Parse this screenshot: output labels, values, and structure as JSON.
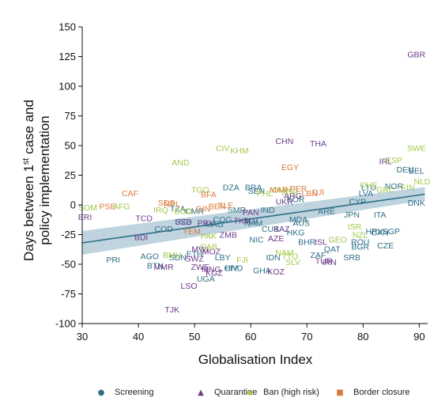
{
  "chart_data": {
    "type": "scatter",
    "xlabel": "Globalisation Index",
    "ylabel_parts": [
      "Days between 1",
      "st",
      " case and",
      "policy implementation"
    ],
    "xlim": [
      30,
      91.5
    ],
    "ylim": [
      -100,
      150
    ],
    "xticks": [
      30,
      40,
      50,
      60,
      70,
      80,
      90
    ],
    "yticks": [
      -100,
      -75,
      -50,
      -25,
      0,
      25,
      50,
      75,
      100,
      125,
      150
    ],
    "xtick_labels": [
      "30",
      "40",
      "50",
      "60",
      "70",
      "80",
      "90"
    ],
    "ytick_labels": [
      "-100",
      "-75",
      "-50",
      "-25",
      "0",
      "25",
      "50",
      "75",
      "100",
      "125",
      "150"
    ],
    "grid": false,
    "legend_position": "bottom",
    "fit_line": {
      "x": [
        30,
        91
      ],
      "y": [
        -32,
        9
      ],
      "ci_lower": [
        -42,
        4
      ],
      "ci_upper": [
        -22,
        15
      ],
      "line_color": "#2e6f86",
      "band_color": "#a9c6d4"
    },
    "series": [
      {
        "name": "Screening",
        "marker": "●",
        "color": "#2e6f86",
        "points": [
          {
            "label": "PRI",
            "x": 35.5,
            "y": -46
          },
          {
            "label": "BTN",
            "x": 43,
            "y": -51
          },
          {
            "label": "AGO",
            "x": 42,
            "y": -43
          },
          {
            "label": "COD",
            "x": 44.5,
            "y": -20
          },
          {
            "label": "UZB",
            "x": 48,
            "y": -14
          },
          {
            "label": "CMR",
            "x": 50,
            "y": -5
          },
          {
            "label": "MAG",
            "x": 53.5,
            "y": -16
          },
          {
            "label": "COG",
            "x": 55,
            "y": -12
          },
          {
            "label": "DZA",
            "x": 56.5,
            "y": 15
          },
          {
            "label": "CAN",
            "x": 83,
            "y": -23
          },
          {
            "label": "CZE",
            "x": 84,
            "y": -34
          },
          {
            "label": "SRB",
            "x": 78,
            "y": -44
          },
          {
            "label": "BGR",
            "x": 79.5,
            "y": -35
          },
          {
            "label": "ROU",
            "x": 79.5,
            "y": -31
          },
          {
            "label": "SGP",
            "x": 85,
            "y": -22
          },
          {
            "label": "HRV",
            "x": 82,
            "y": -22
          },
          {
            "label": "JPN",
            "x": 78,
            "y": -8
          },
          {
            "label": "ITA",
            "x": 83,
            "y": -8
          },
          {
            "label": "DNK",
            "x": 89.5,
            "y": 2
          },
          {
            "label": "DEU",
            "x": 87.5,
            "y": 30
          },
          {
            "label": "BEL",
            "x": 89.5,
            "y": 29
          },
          {
            "label": "NOR",
            "x": 85.5,
            "y": 16
          },
          {
            "label": "LVA",
            "x": 80.5,
            "y": 10
          },
          {
            "label": "LTU",
            "x": 81,
            "y": 15
          },
          {
            "label": "CYP",
            "x": 79,
            "y": 3
          },
          {
            "label": "HKG",
            "x": 68,
            "y": -23
          },
          {
            "label": "AUS",
            "x": 69,
            "y": -15
          },
          {
            "label": "ARE",
            "x": 73.5,
            "y": -5
          },
          {
            "label": "MDA",
            "x": 68.5,
            "y": -12
          },
          {
            "label": "BHR",
            "x": 70,
            "y": -31
          },
          {
            "label": "QAT",
            "x": 74.5,
            "y": -37
          },
          {
            "label": "SLV",
            "x": 60,
            "y": -13
          },
          {
            "label": "NAM",
            "x": 60.5,
            "y": -15
          },
          {
            "label": "IND",
            "x": 63,
            "y": -4
          },
          {
            "label": "CUB",
            "x": 63.5,
            "y": -20
          },
          {
            "label": "NIC",
            "x": 61,
            "y": -29
          },
          {
            "label": "BRA",
            "x": 60.5,
            "y": 15
          },
          {
            "label": "SEN",
            "x": 61,
            "y": 12
          },
          {
            "label": "SMR",
            "x": 57.5,
            "y": -4
          },
          {
            "label": "KOR",
            "x": 68,
            "y": 5
          },
          {
            "label": "GHA",
            "x": 62,
            "y": -55
          },
          {
            "label": "UGA",
            "x": 52,
            "y": -62
          },
          {
            "label": "CIV",
            "x": 56.5,
            "y": -53
          },
          {
            "label": "SDN",
            "x": 47,
            "y": -44
          },
          {
            "label": "IDN",
            "x": 64,
            "y": -44
          },
          {
            "label": "HND",
            "x": 57,
            "y": -53
          },
          {
            "label": "TZA",
            "x": 47,
            "y": -3
          },
          {
            "label": "ETH",
            "x": 50,
            "y": -41
          },
          {
            "label": "LBY",
            "x": 55,
            "y": -44
          },
          {
            "label": "ZAF",
            "x": 72,
            "y": -42
          }
        ]
      },
      {
        "name": "Quarantine",
        "marker": "▲",
        "color": "#6b3a8a",
        "points": [
          {
            "label": "GBR",
            "x": 89.5,
            "y": 127
          },
          {
            "label": "CHN",
            "x": 66,
            "y": 54
          },
          {
            "label": "THA",
            "x": 72,
            "y": 52
          },
          {
            "label": "IRL",
            "x": 84,
            "y": 37
          },
          {
            "label": "ERI",
            "x": 30.5,
            "y": -10
          },
          {
            "label": "TCD",
            "x": 41,
            "y": -11
          },
          {
            "label": "BDI",
            "x": 40.5,
            "y": -27
          },
          {
            "label": "TJK",
            "x": 46,
            "y": -88
          },
          {
            "label": "LSO",
            "x": 49,
            "y": -68
          },
          {
            "label": "MMR",
            "x": 44.5,
            "y": -52
          },
          {
            "label": "SWZ",
            "x": 50,
            "y": -45
          },
          {
            "label": "AZE",
            "x": 64.5,
            "y": -28
          },
          {
            "label": "KAZ",
            "x": 65.5,
            "y": -20
          },
          {
            "label": "TKM",
            "x": 58.5,
            "y": -13
          },
          {
            "label": "PRY",
            "x": 52,
            "y": -15
          },
          {
            "label": "SSD",
            "x": 48,
            "y": -14
          },
          {
            "label": "ZMB",
            "x": 56,
            "y": -25
          },
          {
            "label": "MOZ",
            "x": 53,
            "y": -39
          },
          {
            "label": "MWI",
            "x": 51,
            "y": -37
          },
          {
            "label": "ZWE",
            "x": 51,
            "y": -52
          },
          {
            "label": "MNG",
            "x": 53,
            "y": -54
          },
          {
            "label": "KGZ",
            "x": 53.5,
            "y": -57
          },
          {
            "label": "UKR",
            "x": 66,
            "y": 3
          },
          {
            "label": "ARG",
            "x": 67.5,
            "y": 8
          },
          {
            "label": "TUR",
            "x": 73,
            "y": -47
          },
          {
            "label": "IRN",
            "x": 74,
            "y": -48
          },
          {
            "label": "ISL",
            "x": 72.5,
            "y": -31
          },
          {
            "label": "KOZ",
            "x": 64.5,
            "y": -56
          },
          {
            "label": "PAN",
            "x": 60,
            "y": -6
          }
        ]
      },
      {
        "name": "Ban (high risk)",
        "marker": "◆",
        "color": "#a3c94a",
        "points": [
          {
            "label": "SWE",
            "x": 89.5,
            "y": 48
          },
          {
            "label": "CIV",
            "x": 55,
            "y": 48
          },
          {
            "label": "KHM",
            "x": 58,
            "y": 46
          },
          {
            "label": "AND",
            "x": 47.5,
            "y": 36
          },
          {
            "label": "ESP",
            "x": 85.5,
            "y": 38
          },
          {
            "label": "NLD",
            "x": 90.5,
            "y": 20
          },
          {
            "label": "FIN",
            "x": 88,
            "y": 15
          },
          {
            "label": "AFG",
            "x": 37,
            "y": -1
          },
          {
            "label": "SOM",
            "x": 31,
            "y": -2
          },
          {
            "label": "TGO",
            "x": 51,
            "y": 13
          },
          {
            "label": "ISR",
            "x": 78.5,
            "y": -18
          },
          {
            "label": "NZL",
            "x": 79.5,
            "y": -25
          },
          {
            "label": "GEO",
            "x": 75.5,
            "y": -29
          },
          {
            "label": "PAK",
            "x": 52.5,
            "y": -26
          },
          {
            "label": "BMU",
            "x": 46,
            "y": -42
          },
          {
            "label": "GAB",
            "x": 52.5,
            "y": -35
          },
          {
            "label": "FJI",
            "x": 58.5,
            "y": -46
          },
          {
            "label": "NAM",
            "x": 66,
            "y": -40
          },
          {
            "label": "SLV",
            "x": 67.5,
            "y": -48
          },
          {
            "label": "TTO",
            "x": 67,
            "y": -43
          },
          {
            "label": "CHE",
            "x": 81,
            "y": 17
          },
          {
            "label": "GRC",
            "x": 84,
            "y": 13
          },
          {
            "label": "OMN",
            "x": 65.5,
            "y": 13
          },
          {
            "label": "JOR",
            "x": 67,
            "y": 11
          },
          {
            "label": "IRQ",
            "x": 44,
            "y": -4
          },
          {
            "label": "BGD",
            "x": 48,
            "y": -5
          },
          {
            "label": "PHL",
            "x": 62.5,
            "y": 10
          }
        ]
      },
      {
        "name": "Border closure",
        "marker": "■",
        "color": "#d97a3c",
        "points": [
          {
            "label": "EGY",
            "x": 67,
            "y": 32
          },
          {
            "label": "CAF",
            "x": 38.5,
            "y": 10
          },
          {
            "label": "PSE",
            "x": 34.5,
            "y": -1
          },
          {
            "label": "BFA",
            "x": 52.5,
            "y": 9
          },
          {
            "label": "YEM",
            "x": 49.5,
            "y": -22
          },
          {
            "label": "LBN",
            "x": 70.5,
            "y": 10
          },
          {
            "label": "DJI",
            "x": 72,
            "y": 11
          },
          {
            "label": "SDS",
            "x": 45,
            "y": 2
          },
          {
            "label": "NPL",
            "x": 46,
            "y": 1
          },
          {
            "label": "MAR",
            "x": 65,
            "y": 13
          },
          {
            "label": "PER",
            "x": 68.5,
            "y": 14
          },
          {
            "label": "SLE",
            "x": 55.5,
            "y": 0
          },
          {
            "label": "BEN",
            "x": 54,
            "y": -1
          },
          {
            "label": "GIN",
            "x": 51.5,
            "y": -3
          }
        ]
      }
    ]
  }
}
